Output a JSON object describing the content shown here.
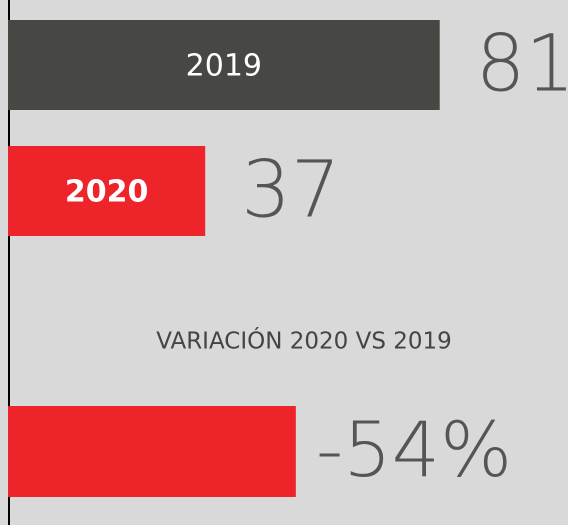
{
  "chart_data": {
    "type": "bar",
    "categories": [
      "2019",
      "2020"
    ],
    "values": [
      81,
      37
    ],
    "colors": [
      "#474743",
      "#ee242b"
    ],
    "variation": {
      "label": "VARIACIÓN 2020 VS 2019",
      "value": -54,
      "value_label": "-54%",
      "color": "#ee242b"
    }
  }
}
